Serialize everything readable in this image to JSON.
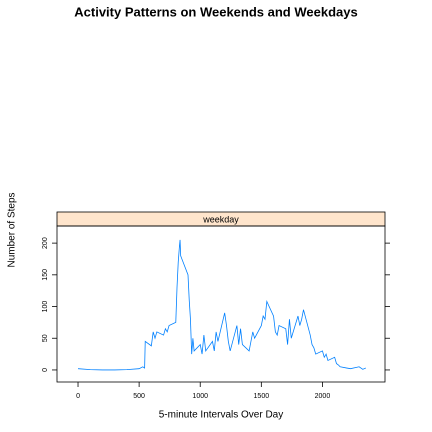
{
  "chart_data": {
    "type": "line",
    "title": "Activity Patterns on Weekends and Weekdays",
    "x_label": "5-minute Intervals Over Day",
    "y_label": "Number of Steps",
    "panel": "weekday",
    "panel_color": "#ffe5cc",
    "x": [
      0,
      100,
      200,
      300,
      400,
      500,
      530,
      545,
      550,
      600,
      615,
      630,
      645,
      700,
      715,
      730,
      745,
      800,
      810,
      820,
      830,
      835,
      840,
      850,
      900,
      910,
      920,
      930,
      940,
      950,
      1000,
      1015,
      1030,
      1045,
      1100,
      1115,
      1130,
      1145,
      1200,
      1215,
      1230,
      1245,
      1300,
      1315,
      1330,
      1345,
      1400,
      1415,
      1430,
      1445,
      1500,
      1515,
      1530,
      1545,
      1600,
      1615,
      1630,
      1645,
      1700,
      1715,
      1730,
      1745,
      1800,
      1815,
      1830,
      1845,
      1900,
      1915,
      1930,
      1945,
      2000,
      2015,
      2030,
      2045,
      2100,
      2115,
      2130,
      2145,
      2200,
      2230,
      2300,
      2330,
      2355
    ],
    "series": [
      {
        "name": "weekday",
        "color": "#0080ff",
        "values": [
          2,
          0.5,
          0,
          0,
          0.5,
          2,
          5,
          3,
          45,
          38,
          60,
          50,
          60,
          55,
          65,
          60,
          70,
          75,
          130,
          170,
          195,
          205,
          180,
          175,
          150,
          110,
          80,
          25,
          50,
          30,
          40,
          25,
          55,
          30,
          45,
          30,
          60,
          45,
          90,
          70,
          45,
          30,
          70,
          40,
          65,
          40,
          30,
          45,
          60,
          50,
          70,
          85,
          80,
          108,
          85,
          60,
          55,
          70,
          65,
          40,
          80,
          50,
          85,
          70,
          80,
          95,
          55,
          40,
          35,
          25,
          30,
          20,
          25,
          15,
          20,
          10,
          8,
          5,
          3,
          2,
          5,
          1,
          3
        ]
      }
    ],
    "xlim": [
      -172,
      2512
    ],
    "ylim": [
      -19,
      227
    ],
    "xticks": [
      0,
      500,
      1000,
      1500,
      2000
    ],
    "yticks": [
      0,
      50,
      100,
      150,
      200
    ]
  }
}
